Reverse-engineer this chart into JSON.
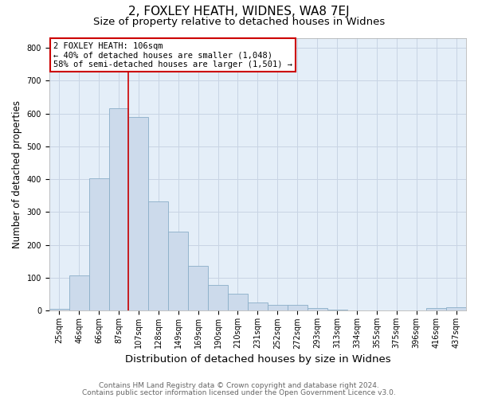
{
  "title": "2, FOXLEY HEATH, WIDNES, WA8 7EJ",
  "subtitle": "Size of property relative to detached houses in Widnes",
  "xlabel": "Distribution of detached houses by size in Widnes",
  "ylabel": "Number of detached properties",
  "footnote1": "Contains HM Land Registry data © Crown copyright and database right 2024.",
  "footnote2": "Contains public sector information licensed under the Open Government Licence v3.0.",
  "bin_labels": [
    "25sqm",
    "46sqm",
    "66sqm",
    "87sqm",
    "107sqm",
    "128sqm",
    "149sqm",
    "169sqm",
    "190sqm",
    "210sqm",
    "231sqm",
    "252sqm",
    "272sqm",
    "293sqm",
    "313sqm",
    "334sqm",
    "355sqm",
    "375sqm",
    "396sqm",
    "416sqm",
    "437sqm"
  ],
  "bar_heights": [
    7,
    107,
    403,
    615,
    590,
    333,
    240,
    136,
    78,
    51,
    25,
    17,
    18,
    8,
    4,
    2,
    0,
    0,
    0,
    8,
    10
  ],
  "bar_color": "#ccdaeb",
  "bar_edge_color": "#8aaec8",
  "property_line_x": 3.5,
  "property_line_color": "#cc0000",
  "annotation_text": "2 FOXLEY HEATH: 106sqm\n← 40% of detached houses are smaller (1,048)\n58% of semi-detached houses are larger (1,501) →",
  "annotation_box_color": "#ffffff",
  "annotation_box_edge": "#cc0000",
  "ylim": [
    0,
    830
  ],
  "yticks": [
    0,
    100,
    200,
    300,
    400,
    500,
    600,
    700,
    800
  ],
  "grid_color": "#c8d4e4",
  "bg_color": "#e4eef8",
  "fig_bg_color": "#ffffff",
  "title_fontsize": 11,
  "subtitle_fontsize": 9.5,
  "xlabel_fontsize": 9.5,
  "ylabel_fontsize": 8.5,
  "tick_fontsize": 7,
  "annotation_fontsize": 7.5,
  "footnote_fontsize": 6.5
}
